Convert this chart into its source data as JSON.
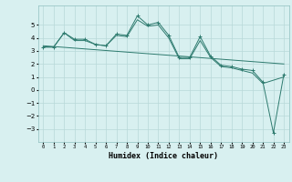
{
  "xlabel": "Humidex (Indice chaleur)",
  "x_values": [
    0,
    1,
    2,
    3,
    4,
    5,
    6,
    7,
    8,
    9,
    10,
    11,
    12,
    13,
    14,
    15,
    16,
    17,
    18,
    19,
    20,
    21,
    22,
    23
  ],
  "line1_y": [
    3.3,
    3.3,
    4.4,
    3.9,
    3.9,
    3.5,
    3.4,
    4.3,
    4.2,
    5.7,
    5.0,
    5.2,
    4.2,
    2.5,
    2.5,
    4.1,
    2.6,
    1.9,
    1.8,
    1.6,
    1.5,
    0.6,
    -3.3,
    1.2
  ],
  "line2_y": [
    3.3,
    3.3,
    4.4,
    3.8,
    3.8,
    3.5,
    3.4,
    4.2,
    4.1,
    5.4,
    4.9,
    5.0,
    4.0,
    2.4,
    2.4,
    3.8,
    2.5,
    1.8,
    1.7,
    1.5,
    1.3,
    0.5,
    null,
    1.0
  ],
  "trend_x": [
    0,
    23
  ],
  "trend_y": [
    3.4,
    2.0
  ],
  "line_color": "#2d7a6e",
  "bg_color": "#d8f0f0",
  "grid_color": "#b8d8d8",
  "ylim": [
    -4,
    6.5
  ],
  "yticks": [
    -3,
    -2,
    -1,
    0,
    1,
    2,
    3,
    4,
    5
  ],
  "xlim": [
    -0.5,
    23.5
  ]
}
